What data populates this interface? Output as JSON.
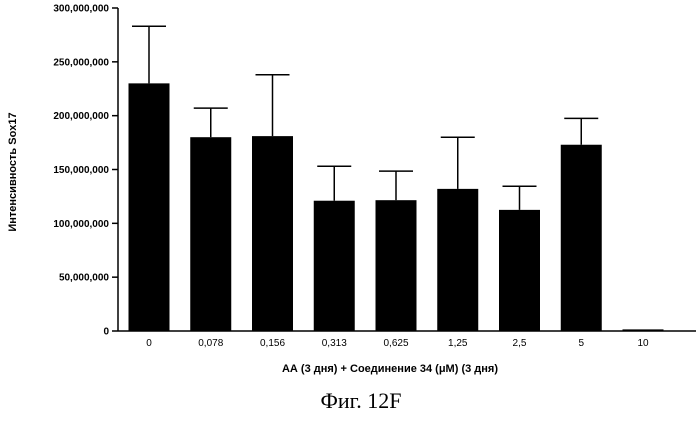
{
  "chart_data": {
    "type": "bar",
    "categories": [
      "0",
      "0,078",
      "0,156",
      "0,313",
      "0,625",
      "1,25",
      "2,5",
      "5",
      "10"
    ],
    "values": [
      230000000,
      180000000,
      181000000,
      121000000,
      121500000,
      132000000,
      112500000,
      173000000,
      1500000
    ],
    "error": [
      53000000,
      27000000,
      57000000,
      32000000,
      27000000,
      48000000,
      22000000,
      24500000,
      0
    ],
    "ylabel": "Интенсивность Sox17",
    "xlabel": "АА (3 дня) + Соединение 34 (μM) (3 дня)",
    "ylim": [
      0,
      300000000
    ],
    "yticks": [
      0,
      50000000,
      100000000,
      150000000,
      200000000,
      250000000,
      300000000
    ],
    "ytick_labels": [
      "0",
      "50,000,000",
      "100,000,000",
      "150,000,000",
      "200,000,000",
      "250,000,000",
      "300,000,000"
    ],
    "grid": false,
    "bar_color": "#000000"
  },
  "caption": "Фиг. 12F"
}
